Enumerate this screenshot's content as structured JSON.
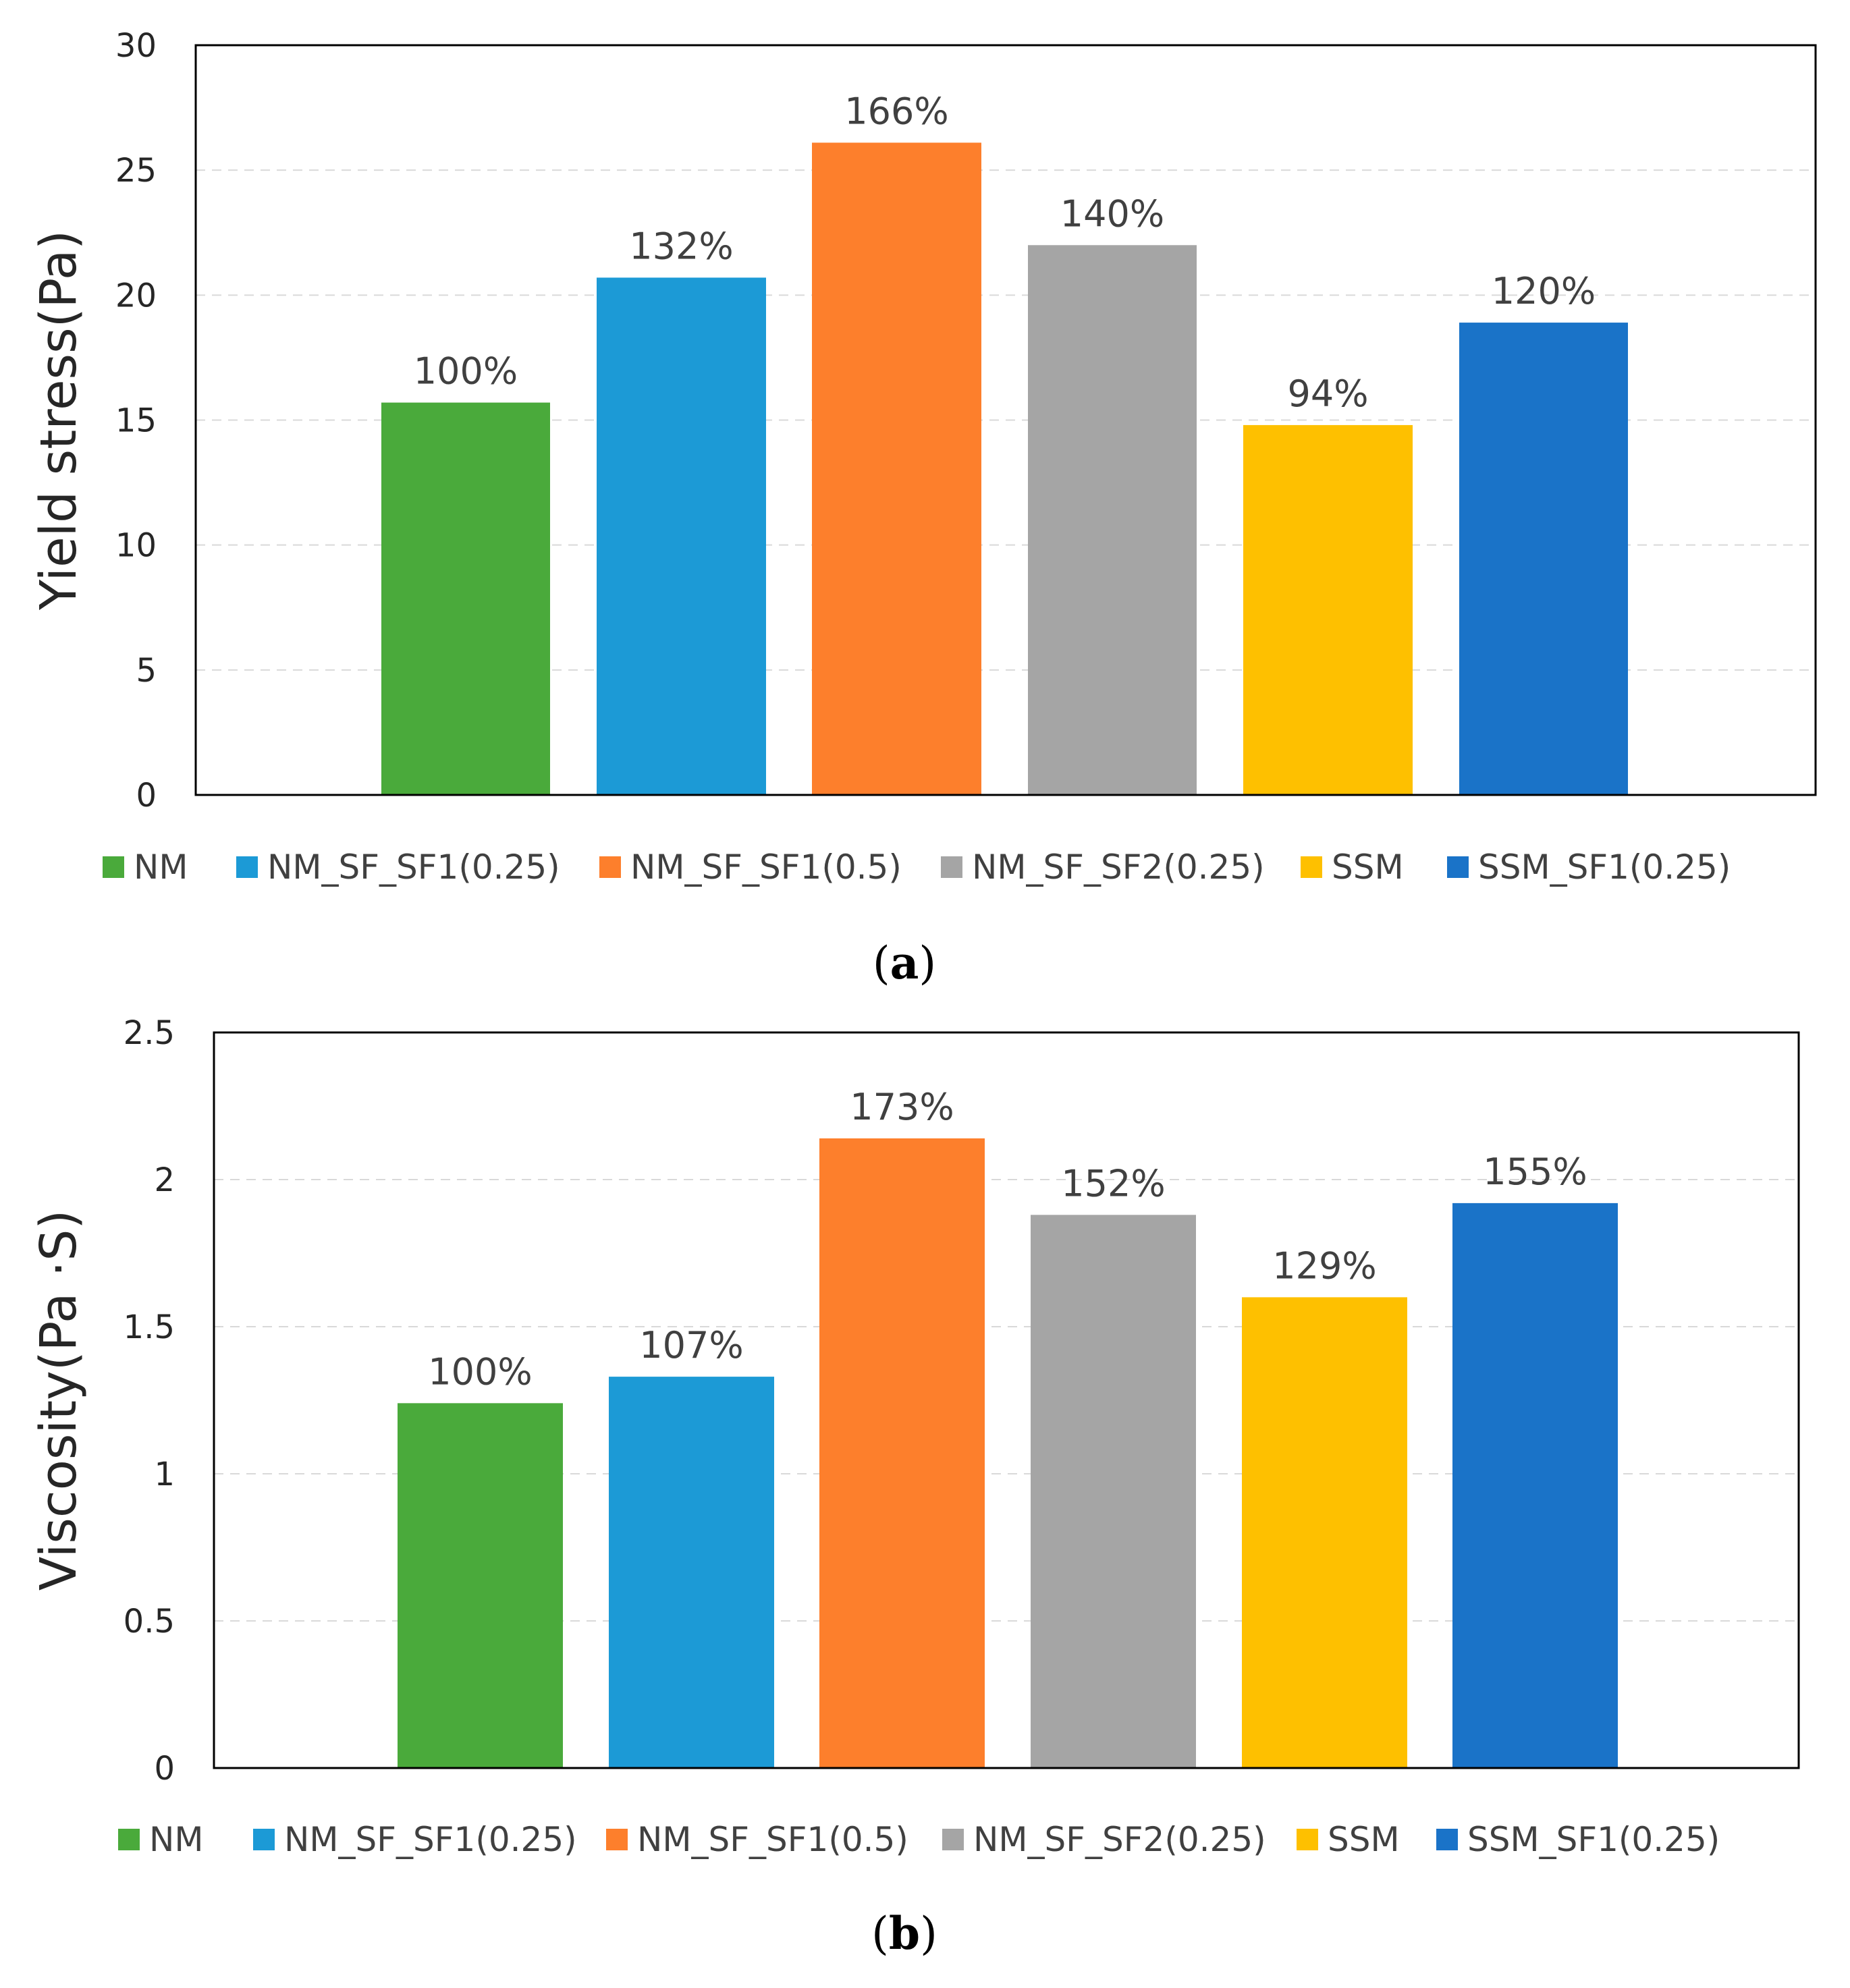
{
  "chart_data": [
    {
      "type": "bar",
      "panel": "a",
      "caption": {
        "open": "(",
        "letter": "a",
        "close": ")"
      },
      "ylabel": "Yield stress(Pa)",
      "xlabel": "",
      "ylim": [
        0,
        30
      ],
      "yticks": [
        0,
        5,
        10,
        15,
        20,
        25,
        30
      ],
      "ytick_labels": [
        "0",
        "5",
        "10",
        "15",
        "20",
        "25",
        "30"
      ],
      "grid": true,
      "legend_position": "bottom",
      "series": [
        {
          "name": "NM",
          "value": 15.7,
          "label": "100%",
          "color": "#4aaa3b"
        },
        {
          "name": "NM_SF_SF1(0.25)",
          "value": 20.7,
          "label": "132%",
          "color": "#1c9ad6"
        },
        {
          "name": "NM_SF_SF1(0.5)",
          "value": 26.1,
          "label": "166%",
          "color": "#fd7f2c"
        },
        {
          "name": "NM_SF_SF2(0.25)",
          "value": 22.0,
          "label": "140%",
          "color": "#a5a5a5"
        },
        {
          "name": "SSM",
          "value": 14.8,
          "label": "94%",
          "color": "#fec000"
        },
        {
          "name": "SSM_SF1(0.25)",
          "value": 18.9,
          "label": "120%",
          "color": "#1a73c8"
        }
      ]
    },
    {
      "type": "bar",
      "panel": "b",
      "caption": {
        "open": "(",
        "letter": "b",
        "close": ")"
      },
      "ylabel": "Viscosity(Pa ·S)",
      "xlabel": "",
      "ylim": [
        0,
        2.5
      ],
      "yticks": [
        0,
        0.5,
        1,
        1.5,
        2,
        2.5
      ],
      "ytick_labels": [
        "0",
        "0.5",
        "1",
        "1.5",
        "2",
        "2.5"
      ],
      "grid": true,
      "legend_position": "bottom",
      "series": [
        {
          "name": "NM",
          "value": 1.24,
          "label": "100%",
          "color": "#4aaa3b"
        },
        {
          "name": "NM_SF_SF1(0.25)",
          "value": 1.33,
          "label": "107%",
          "color": "#1c9ad6"
        },
        {
          "name": "NM_SF_SF1(0.5)",
          "value": 2.14,
          "label": "173%",
          "color": "#fd7f2c"
        },
        {
          "name": "NM_SF_SF2(0.25)",
          "value": 1.88,
          "label": "152%",
          "color": "#a5a5a5"
        },
        {
          "name": "SSM",
          "value": 1.6,
          "label": "129%",
          "color": "#fec000"
        },
        {
          "name": "SSM_SF1(0.25)",
          "value": 1.92,
          "label": "155%",
          "color": "#1a73c8"
        }
      ]
    }
  ]
}
